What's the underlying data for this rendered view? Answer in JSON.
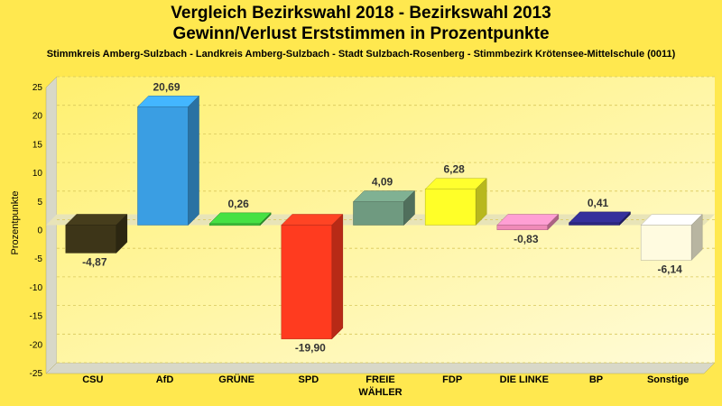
{
  "header": {
    "title_line1": "Vergleich Bezirkswahl 2018 - Bezirkswahl 2013",
    "title_line2": "Gewinn/Verlust Erststimmen in Prozentpunkte",
    "subtitle": "Stimmkreis Amberg-Sulzbach - Landkreis Amberg-Sulzbach - Stadt Sulzbach-Rosenberg - Stimmbezirk Krötensee-Mittelschule (0011)"
  },
  "chart_data": {
    "type": "bar",
    "title": "Vergleich Bezirkswahl 2018 - Bezirkswahl 2013 / Gewinn/Verlust Erststimmen in Prozentpunkte",
    "ylabel": "Prozentpunkte",
    "xlabel": "",
    "ylim": [
      -25,
      25
    ],
    "yticks": [
      25,
      20,
      15,
      10,
      5,
      0,
      -5,
      -10,
      -15,
      -20,
      -25
    ],
    "grid": true,
    "categories": [
      [
        "CSU"
      ],
      [
        "AfD"
      ],
      [
        "GRÜNE"
      ],
      [
        "SPD"
      ],
      [
        "FREIE",
        "WÄHLER"
      ],
      [
        "FDP"
      ],
      [
        "DIE LINKE"
      ],
      [
        "BP"
      ],
      [
        "Sonstige"
      ]
    ],
    "values": [
      -4.87,
      20.69,
      0.26,
      -19.9,
      4.09,
      6.28,
      -0.83,
      0.41,
      -6.14
    ],
    "value_labels": [
      "-4,87",
      "20,69",
      "0,26",
      "-19,90",
      "4,09",
      "6,28",
      "-0,83",
      "0,41",
      "-6,14"
    ],
    "colors": [
      "#3d3518",
      "#3a9ee3",
      "#3dc43a",
      "#ff3b1f",
      "#6f9a80",
      "#ffff28",
      "#f08ab8",
      "#2e2a88",
      "#fffbe0"
    ]
  }
}
